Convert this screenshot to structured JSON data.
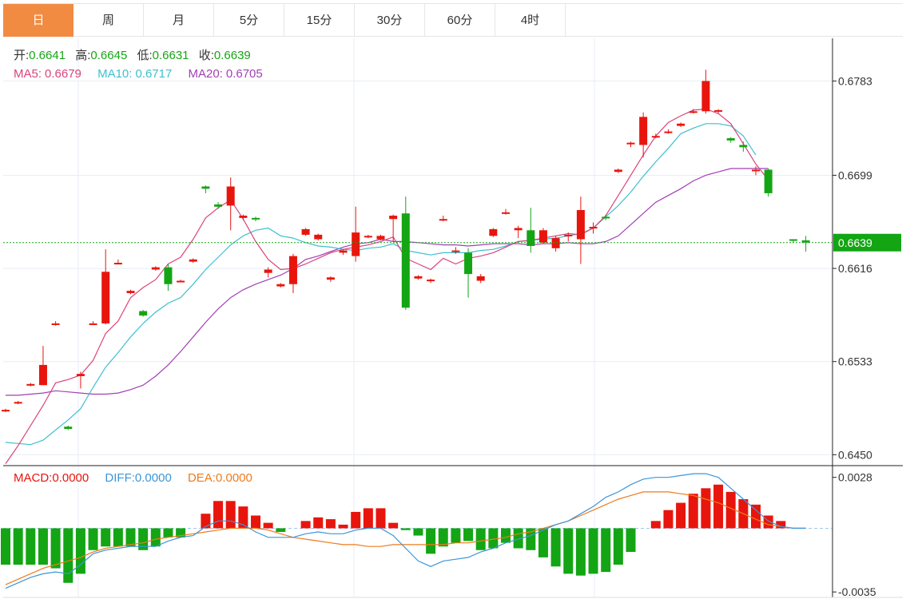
{
  "tabs": [
    {
      "label": "日",
      "active": true
    },
    {
      "label": "周",
      "active": false
    },
    {
      "label": "月",
      "active": false
    },
    {
      "label": "5分",
      "active": false
    },
    {
      "label": "15分",
      "active": false
    },
    {
      "label": "30分",
      "active": false
    },
    {
      "label": "60分",
      "active": false
    },
    {
      "label": "4时",
      "active": false
    }
  ],
  "legend": {
    "open_label": "开:",
    "open_value": "0.6641",
    "high_label": "高:",
    "high_value": "0.6645",
    "low_label": "低:",
    "low_value": "0.6631",
    "close_label": "收:",
    "close_value": "0.6639",
    "ma5_label": "MA5:",
    "ma5_value": "0.6679",
    "ma10_label": "MA10:",
    "ma10_value": "0.6717",
    "ma20_label": "MA20:",
    "ma20_value": "0.6705"
  },
  "macd_legend": {
    "macd_label": "MACD:",
    "macd_value": "0.0000",
    "diff_label": "DIFF:",
    "diff_value": "0.0000",
    "dea_label": "DEA:",
    "dea_value": "0.0000"
  },
  "colors": {
    "up": "#e8150d",
    "down": "#13a514",
    "ma5": "#d9447b",
    "ma10": "#3fbfd0",
    "ma20": "#a23fb4",
    "diff": "#3d95d8",
    "dea": "#ee7b1c",
    "tab_active": "#f18b42",
    "label_text": "#16a514"
  },
  "chart_data": [
    {
      "type": "candlestick",
      "y_ticks": [
        "0.6783",
        "0.6699",
        "0.6616",
        "0.6533",
        "0.6450"
      ],
      "ylim": [
        0.6441,
        0.6821
      ],
      "last_price_label": "0.6639",
      "last_price": 0.6639,
      "candles": [
        [
          0.6489,
          0.649,
          0.6488,
          0.6491
        ],
        [
          0.6496,
          0.6497,
          0.6495,
          0.6498
        ],
        [
          0.6512,
          0.6513,
          0.6511,
          0.6514
        ],
        [
          0.6512,
          0.653,
          0.6512,
          0.6547
        ],
        [
          0.6566,
          0.6567,
          0.6565,
          0.6569
        ],
        [
          0.6475,
          0.6473,
          0.6472,
          0.6476
        ],
        [
          0.652,
          0.6522,
          0.6509,
          0.6524
        ],
        [
          0.6566,
          0.6567,
          0.6566,
          0.6569
        ],
        [
          0.6567,
          0.6613,
          0.6566,
          0.6633
        ],
        [
          0.662,
          0.6621,
          0.662,
          0.6624
        ],
        [
          0.6594,
          0.6596,
          0.6593,
          0.6597
        ],
        [
          0.6578,
          0.6574,
          0.6573,
          0.6579
        ],
        [
          0.6615,
          0.6617,
          0.6614,
          0.6618
        ],
        [
          0.6617,
          0.6602,
          0.6596,
          0.662
        ],
        [
          0.6604,
          0.6605,
          0.6604,
          0.6606
        ],
        [
          0.6622,
          0.6624,
          0.6621,
          0.6625
        ],
        [
          0.6689,
          0.6687,
          0.6683,
          0.669
        ],
        [
          0.6673,
          0.6671,
          0.6669,
          0.6675
        ],
        [
          0.6672,
          0.6689,
          0.665,
          0.6697
        ],
        [
          0.6661,
          0.6663,
          0.6659,
          0.6664
        ],
        [
          0.6661,
          0.666,
          0.6658,
          0.6662
        ],
        [
          0.6612,
          0.6615,
          0.6608,
          0.6617
        ],
        [
          0.66,
          0.6602,
          0.6599,
          0.6603
        ],
        [
          0.6602,
          0.6627,
          0.6594,
          0.6629
        ],
        [
          0.6646,
          0.6651,
          0.6645,
          0.6652
        ],
        [
          0.6642,
          0.6646,
          0.6641,
          0.6647
        ],
        [
          0.6606,
          0.6608,
          0.6604,
          0.6609
        ],
        [
          0.663,
          0.6632,
          0.6628,
          0.6633
        ],
        [
          0.6627,
          0.6648,
          0.6622,
          0.6671
        ],
        [
          0.6644,
          0.6645,
          0.6643,
          0.6646
        ],
        [
          0.6642,
          0.6645,
          0.6641,
          0.6646
        ],
        [
          0.666,
          0.6663,
          0.664,
          0.6664
        ],
        [
          0.6665,
          0.6581,
          0.6579,
          0.668
        ],
        [
          0.6607,
          0.6609,
          0.6606,
          0.661
        ],
        [
          0.6605,
          0.6606,
          0.6603,
          0.6607
        ],
        [
          0.6659,
          0.666,
          0.6658,
          0.6663
        ],
        [
          0.6632,
          0.6632,
          0.6629,
          0.6635
        ],
        [
          0.663,
          0.6611,
          0.659,
          0.6634
        ],
        [
          0.6605,
          0.6609,
          0.6603,
          0.6611
        ],
        [
          0.6645,
          0.6651,
          0.6644,
          0.6652
        ],
        [
          0.6665,
          0.6666,
          0.6664,
          0.6669
        ],
        [
          0.665,
          0.6652,
          0.6643,
          0.6654
        ],
        [
          0.665,
          0.6636,
          0.663,
          0.667
        ],
        [
          0.6639,
          0.665,
          0.6638,
          0.6652
        ],
        [
          0.6634,
          0.6643,
          0.6631,
          0.6645
        ],
        [
          0.6645,
          0.6646,
          0.664,
          0.6648
        ],
        [
          0.6642,
          0.6668,
          0.662,
          0.668
        ],
        [
          0.6652,
          0.6653,
          0.6647,
          0.6657
        ],
        [
          0.6662,
          0.6661,
          0.6659,
          0.6664
        ],
        [
          0.6702,
          0.6704,
          0.6701,
          0.6705
        ],
        [
          0.6727,
          0.6728,
          0.6724,
          0.6729
        ],
        [
          0.6726,
          0.6751,
          0.6715,
          0.6755
        ],
        [
          0.6733,
          0.6734,
          0.6732,
          0.6736
        ],
        [
          0.6737,
          0.6738,
          0.6736,
          0.674
        ],
        [
          0.6743,
          0.6745,
          0.6742,
          0.6746
        ],
        [
          0.6755,
          0.6756,
          0.6754,
          0.6758
        ],
        [
          0.6756,
          0.6783,
          0.6754,
          0.6793
        ],
        [
          0.6756,
          0.6757,
          0.6754,
          0.6758
        ],
        [
          0.6732,
          0.673,
          0.6728,
          0.6733
        ],
        [
          0.6726,
          0.6724,
          0.672,
          0.6729
        ],
        [
          0.6703,
          0.6704,
          0.6699,
          0.6707
        ],
        [
          0.6704,
          0.6683,
          0.668,
          0.6705
        ],
        [
          null,
          null,
          null,
          null
        ],
        [
          0.6642,
          0.6641,
          0.6639,
          0.6642
        ],
        [
          0.6641,
          0.6639,
          0.6631,
          0.6645
        ]
      ],
      "ma5": [
        0.6442,
        0.6458,
        0.6476,
        0.6494,
        0.6514,
        0.6517,
        0.6521,
        0.6534,
        0.6558,
        0.6569,
        0.659,
        0.6599,
        0.6606,
        0.662,
        0.6626,
        0.6642,
        0.6661,
        0.667,
        0.6677,
        0.666,
        0.664,
        0.6624,
        0.6615,
        0.6616,
        0.662,
        0.6625,
        0.663,
        0.6633,
        0.6635,
        0.6637,
        0.664,
        0.6644,
        0.6625,
        0.662,
        0.6615,
        0.6625,
        0.662,
        0.6625,
        0.6627,
        0.663,
        0.6635,
        0.664,
        0.6641,
        0.6643,
        0.6645,
        0.6647,
        0.6646,
        0.6652,
        0.6663,
        0.6681,
        0.6699,
        0.6717,
        0.6734,
        0.6746,
        0.6752,
        0.6757,
        0.6758,
        0.6754,
        0.6745,
        0.6727,
        0.6709,
        0.6695,
        null,
        null
      ],
      "ma10": [
        0.6461,
        0.646,
        0.6459,
        0.6463,
        0.6472,
        0.6481,
        0.6491,
        0.651,
        0.6528,
        0.6541,
        0.6555,
        0.6567,
        0.6577,
        0.6585,
        0.659,
        0.6602,
        0.6615,
        0.6626,
        0.6637,
        0.6645,
        0.665,
        0.6652,
        0.6645,
        0.6643,
        0.6639,
        0.6636,
        0.6635,
        0.6633,
        0.6632,
        0.6634,
        0.6635,
        0.6638,
        0.6632,
        0.663,
        0.6628,
        0.663,
        0.663,
        0.663,
        0.6632,
        0.6633,
        0.6636,
        0.664,
        0.6641,
        0.6642,
        0.6643,
        0.6645,
        0.6647,
        0.6652,
        0.6662,
        0.6672,
        0.6684,
        0.6698,
        0.6711,
        0.6723,
        0.6736,
        0.6741,
        0.6745,
        0.6745,
        0.6743,
        0.6734,
        0.6717,
        null,
        null,
        null
      ],
      "ma20": [
        0.6503,
        0.6503,
        0.6504,
        0.6505,
        0.6507,
        0.6506,
        0.6505,
        0.6504,
        0.6504,
        0.6505,
        0.6508,
        0.6512,
        0.652,
        0.653,
        0.6542,
        0.6555,
        0.6568,
        0.658,
        0.659,
        0.6597,
        0.6602,
        0.6606,
        0.661,
        0.6616,
        0.6624,
        0.6627,
        0.6631,
        0.6635,
        0.6638,
        0.6639,
        0.6642,
        0.664,
        0.664,
        0.6639,
        0.6638,
        0.6637,
        0.6637,
        0.6636,
        0.6637,
        0.6638,
        0.6638,
        0.6638,
        0.6637,
        0.6638,
        0.6638,
        0.6639,
        0.6638,
        0.6638,
        0.664,
        0.6645,
        0.6655,
        0.6665,
        0.6675,
        0.6681,
        0.6687,
        0.6694,
        0.6699,
        0.6702,
        0.6705,
        0.6705,
        0.6705,
        0.6705,
        null,
        null
      ]
    },
    {
      "type": "macd",
      "y_ticks": [
        "0.0028",
        "-0.0035"
      ],
      "ylim": [
        -0.0038,
        0.0034
      ],
      "histogram": [
        -0.002,
        -0.002,
        -0.002,
        -0.002,
        -0.0022,
        -0.003,
        -0.0025,
        -0.0012,
        -0.001,
        -0.001,
        -0.001,
        -0.0012,
        -0.001,
        -0.0005,
        -0.0005,
        0.0,
        0.0008,
        0.0015,
        0.0015,
        0.0012,
        0.0007,
        0.0003,
        -0.0002,
        0.0,
        0.0004,
        0.0006,
        0.0005,
        0.0002,
        0.0009,
        0.0011,
        0.0011,
        0.0003,
        -0.0001,
        -0.0004,
        -0.0014,
        -0.001,
        -0.0008,
        -0.0007,
        -0.0012,
        -0.0011,
        -0.0008,
        -0.0011,
        -0.0012,
        -0.0016,
        -0.0021,
        -0.0025,
        -0.0026,
        -0.0025,
        -0.0024,
        -0.002,
        -0.0013,
        0.0,
        0.0004,
        0.001,
        0.0014,
        0.0019,
        0.0022,
        0.0024,
        0.002,
        0.0016,
        0.0013,
        0.0007,
        0.0004,
        0.0,
        0.0
      ],
      "diff": [
        -0.0033,
        -0.003,
        -0.0027,
        -0.0025,
        -0.0024,
        -0.0025,
        -0.002,
        -0.0014,
        -0.0012,
        -0.0011,
        -0.001,
        -0.001,
        -0.001,
        -0.0007,
        -0.0005,
        -0.0004,
        0.0001,
        0.0004,
        0.0004,
        0.0002,
        -0.0002,
        -0.0005,
        -0.0005,
        -0.0005,
        -0.0003,
        -0.0002,
        -0.0003,
        -0.0003,
        -0.0001,
        0.0,
        0.0,
        -0.0004,
        -0.0011,
        -0.0018,
        -0.0021,
        -0.0018,
        -0.0017,
        -0.0016,
        -0.0013,
        -0.0011,
        -0.0008,
        -0.0006,
        -0.0004,
        -0.0001,
        0.0002,
        0.0004,
        0.0008,
        0.0012,
        0.0017,
        0.002,
        0.0024,
        0.0027,
        0.0028,
        0.0028,
        0.0029,
        0.003,
        0.003,
        0.0028,
        0.0022,
        0.0016,
        0.001,
        0.0004,
        0.0001,
        0.0,
        0.0
      ],
      "dea": [
        -0.0031,
        -0.0028,
        -0.0025,
        -0.0022,
        -0.002,
        -0.0018,
        -0.0016,
        -0.0013,
        -0.0011,
        -0.001,
        -0.0009,
        -0.0008,
        -0.0006,
        -0.0005,
        -0.0004,
        -0.0003,
        -0.0002,
        -0.0001,
        0.0,
        0.0,
        0.0,
        -0.0001,
        -0.0003,
        -0.0005,
        -0.0006,
        -0.0007,
        -0.0008,
        -0.0009,
        -0.0009,
        -0.001,
        -0.001,
        -0.0009,
        -0.0009,
        -0.0009,
        -0.0009,
        -0.0009,
        -0.0008,
        -0.0008,
        -0.0007,
        -0.0006,
        -0.0005,
        -0.0003,
        -0.0002,
        0.0,
        0.0002,
        0.0004,
        0.0007,
        0.001,
        0.0013,
        0.0016,
        0.0018,
        0.002,
        0.002,
        0.002,
        0.0019,
        0.0018,
        0.0016,
        0.0014,
        0.0011,
        0.0008,
        0.0005,
        0.0002,
        0.0001,
        0.0,
        0.0
      ]
    }
  ]
}
